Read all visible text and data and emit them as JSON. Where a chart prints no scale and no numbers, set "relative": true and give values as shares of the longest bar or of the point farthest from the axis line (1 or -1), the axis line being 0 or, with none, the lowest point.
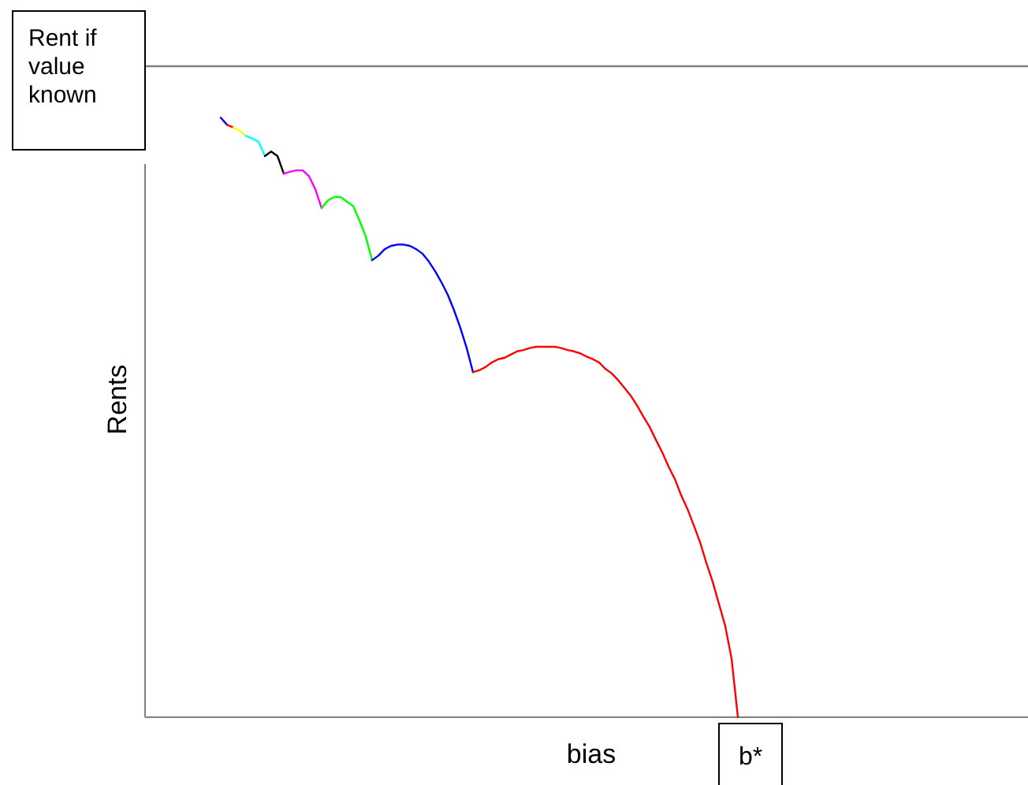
{
  "chart_data": {
    "type": "line",
    "relative": true,
    "xlabel": "bias",
    "ylabel": "Rents",
    "annotations": [
      "b*"
    ],
    "line_style": "solid",
    "categories": [
      null,
      null,
      null,
      null,
      null,
      null,
      null,
      null,
      null,
      null,
      null,
      null,
      null,
      null,
      null,
      null,
      null,
      null,
      null,
      null,
      null,
      null,
      null,
      null,
      null,
      null,
      null,
      null,
      null,
      null,
      null,
      null,
      null,
      null,
      null,
      null,
      null,
      null,
      null,
      null,
      null,
      null,
      null,
      null,
      null,
      null,
      null,
      null,
      null,
      null,
      null,
      null,
      null,
      null,
      null,
      null,
      null,
      null,
      null,
      null,
      null,
      null,
      null,
      null,
      null,
      null,
      null,
      null,
      null,
      null,
      null,
      null,
      null,
      null,
      null,
      null,
      null,
      null,
      null,
      null,
      null,
      null,
      null,
      null,
      null,
      null,
      null,
      null,
      null,
      null,
      null,
      null,
      null,
      null,
      null,
      null,
      null,
      null,
      null,
      null,
      null,
      null,
      null,
      null,
      null,
      null,
      null,
      null,
      null,
      null,
      null,
      null,
      null,
      null,
      null,
      null,
      null,
      null,
      null,
      null,
      null,
      null,
      null,
      null,
      null,
      null,
      null,
      null,
      null,
      null,
      null,
      null,
      null,
      null,
      null,
      null,
      null,
      null,
      null,
      null,
      null
    ],
    "series": [
      {
        "name": "Rent if value known",
        "color": "#808080",
        "values": [
          1,
          1,
          1,
          1,
          1,
          1,
          1,
          1,
          1,
          1,
          1,
          1,
          1,
          1,
          1,
          1,
          1,
          1,
          1,
          1,
          1,
          1,
          1,
          1,
          1,
          1,
          1,
          1,
          1,
          1,
          1,
          1,
          1,
          1,
          1,
          1,
          1,
          1,
          1,
          1,
          1,
          1,
          1,
          1,
          1,
          1,
          1,
          1,
          1,
          1,
          1,
          1,
          1,
          1,
          1,
          1,
          1,
          1,
          1,
          1,
          1,
          1,
          1,
          1,
          1,
          1,
          1,
          1,
          1,
          1,
          1,
          1,
          1,
          1,
          1,
          1,
          1,
          1,
          1,
          1,
          1,
          1,
          1,
          1,
          1,
          1,
          1,
          1,
          1,
          1,
          1,
          1,
          1,
          1,
          1,
          1,
          1,
          1,
          1,
          1,
          1,
          1,
          1,
          1,
          1,
          1,
          1,
          1,
          1,
          1,
          1,
          1,
          1,
          1,
          1,
          1,
          1,
          1,
          1,
          1,
          1,
          1,
          1,
          1,
          1,
          1,
          1,
          1,
          1,
          1,
          1,
          1,
          1,
          1,
          1,
          1,
          1,
          1,
          1,
          1,
          1
        ]
      },
      {
        "color": "#0000ff",
        "values": [
          null,
          null,
          null,
          null,
          null,
          null,
          null,
          null,
          null,
          null,
          null,
          null,
          0.921,
          0.91,
          null,
          null,
          null,
          null,
          null,
          null,
          null,
          null,
          null,
          null,
          null,
          null,
          null,
          null,
          null,
          null,
          null,
          null,
          null,
          null,
          null,
          null,
          null,
          null,
          null,
          null,
          null,
          null,
          null,
          null,
          null,
          null,
          null,
          null,
          null,
          null,
          null,
          null,
          null,
          null,
          null,
          null,
          null,
          null,
          null,
          null,
          null,
          null,
          null,
          null,
          null,
          null,
          null,
          null,
          null,
          null,
          null,
          null,
          null,
          null,
          null,
          null,
          null,
          null,
          null,
          null,
          null,
          null,
          null,
          null,
          null,
          null,
          null,
          null,
          null,
          null,
          null,
          null,
          null,
          null,
          null,
          null,
          null,
          null,
          null,
          null,
          null,
          null,
          null,
          null,
          null,
          null,
          null,
          null,
          null,
          null,
          null,
          null,
          null,
          null,
          null,
          null,
          null,
          null,
          null,
          null,
          null,
          null,
          null,
          null,
          null,
          null,
          null,
          null,
          null,
          null,
          null,
          null,
          null,
          null,
          null,
          null,
          null,
          null,
          null,
          null,
          null
        ]
      },
      {
        "color": "#fe0000",
        "values": [
          null,
          null,
          null,
          null,
          null,
          null,
          null,
          null,
          null,
          null,
          null,
          null,
          null,
          0.91,
          0.906,
          null,
          null,
          null,
          null,
          null,
          null,
          null,
          null,
          null,
          null,
          null,
          null,
          null,
          null,
          null,
          null,
          null,
          null,
          null,
          null,
          null,
          null,
          null,
          null,
          null,
          null,
          null,
          null,
          null,
          null,
          null,
          null,
          null,
          null,
          null,
          null,
          null,
          null,
          null,
          null,
          null,
          null,
          null,
          null,
          null,
          null,
          null,
          null,
          null,
          null,
          null,
          null,
          null,
          null,
          null,
          null,
          null,
          null,
          null,
          null,
          null,
          null,
          null,
          null,
          null,
          null,
          null,
          null,
          null,
          null,
          null,
          null,
          null,
          null,
          null,
          null,
          null,
          null,
          null,
          null,
          null,
          null,
          null,
          null,
          null,
          null,
          null,
          null,
          null,
          null,
          null,
          null,
          null,
          null,
          null,
          null,
          null,
          null,
          null,
          null,
          null,
          null,
          null,
          null,
          null,
          null,
          null,
          null,
          null,
          null,
          null,
          null,
          null,
          null,
          null,
          null,
          null,
          null,
          null,
          null,
          null,
          null,
          null,
          null,
          null,
          null
        ]
      },
      {
        "color": "#ffff00",
        "values": [
          null,
          null,
          null,
          null,
          null,
          null,
          null,
          null,
          null,
          null,
          null,
          null,
          null,
          null,
          0.906,
          0.901,
          0.893,
          null,
          null,
          null,
          null,
          null,
          null,
          null,
          null,
          null,
          null,
          null,
          null,
          null,
          null,
          null,
          null,
          null,
          null,
          null,
          null,
          null,
          null,
          null,
          null,
          null,
          null,
          null,
          null,
          null,
          null,
          null,
          null,
          null,
          null,
          null,
          null,
          null,
          null,
          null,
          null,
          null,
          null,
          null,
          null,
          null,
          null,
          null,
          null,
          null,
          null,
          null,
          null,
          null,
          null,
          null,
          null,
          null,
          null,
          null,
          null,
          null,
          null,
          null,
          null,
          null,
          null,
          null,
          null,
          null,
          null,
          null,
          null,
          null,
          null,
          null,
          null,
          null,
          null,
          null,
          null,
          null,
          null,
          null,
          null,
          null,
          null,
          null,
          null,
          null,
          null,
          null,
          null,
          null,
          null,
          null,
          null,
          null,
          null,
          null,
          null,
          null,
          null,
          null,
          null,
          null,
          null,
          null,
          null,
          null,
          null,
          null,
          null,
          null,
          null,
          null,
          null,
          null,
          null,
          null,
          null,
          null,
          null,
          null,
          null
        ]
      },
      {
        "color": "#00ffff",
        "values": [
          null,
          null,
          null,
          null,
          null,
          null,
          null,
          null,
          null,
          null,
          null,
          null,
          null,
          null,
          null,
          null,
          0.893,
          0.889,
          0.884,
          0.862,
          null,
          null,
          null,
          null,
          null,
          null,
          null,
          null,
          null,
          null,
          null,
          null,
          null,
          null,
          null,
          null,
          null,
          null,
          null,
          null,
          null,
          null,
          null,
          null,
          null,
          null,
          null,
          null,
          null,
          null,
          null,
          null,
          null,
          null,
          null,
          null,
          null,
          null,
          null,
          null,
          null,
          null,
          null,
          null,
          null,
          null,
          null,
          null,
          null,
          null,
          null,
          null,
          null,
          null,
          null,
          null,
          null,
          null,
          null,
          null,
          null,
          null,
          null,
          null,
          null,
          null,
          null,
          null,
          null,
          null,
          null,
          null,
          null,
          null,
          null,
          null,
          null,
          null,
          null,
          null,
          null,
          null,
          null,
          null,
          null,
          null,
          null,
          null,
          null,
          null,
          null,
          null,
          null,
          null,
          null,
          null,
          null,
          null,
          null,
          null,
          null,
          null,
          null,
          null,
          null,
          null,
          null,
          null,
          null,
          null,
          null,
          null,
          null,
          null,
          null,
          null,
          null,
          null,
          null,
          null,
          null
        ]
      },
      {
        "color": "#000000",
        "values": [
          null,
          null,
          null,
          null,
          null,
          null,
          null,
          null,
          null,
          null,
          null,
          null,
          null,
          null,
          null,
          null,
          null,
          null,
          null,
          0.862,
          0.869,
          0.862,
          0.835,
          null,
          null,
          null,
          null,
          null,
          null,
          null,
          null,
          null,
          null,
          null,
          null,
          null,
          null,
          null,
          null,
          null,
          null,
          null,
          null,
          null,
          null,
          null,
          null,
          null,
          null,
          null,
          null,
          null,
          null,
          null,
          null,
          null,
          null,
          null,
          null,
          null,
          null,
          null,
          null,
          null,
          null,
          null,
          null,
          null,
          null,
          null,
          null,
          null,
          null,
          null,
          null,
          null,
          null,
          null,
          null,
          null,
          null,
          null,
          null,
          null,
          null,
          null,
          null,
          null,
          null,
          null,
          null,
          null,
          null,
          null,
          null,
          null,
          null,
          null,
          null,
          null,
          null,
          null,
          null,
          null,
          null,
          null,
          null,
          null,
          null,
          null,
          null,
          null,
          null,
          null,
          null,
          null,
          null,
          null,
          null,
          null,
          null,
          null,
          null,
          null,
          null,
          null,
          null,
          null,
          null,
          null,
          null,
          null,
          null,
          null,
          null,
          null,
          null,
          null,
          null,
          null,
          null
        ]
      },
      {
        "color": "#ff00ff",
        "values": [
          null,
          null,
          null,
          null,
          null,
          null,
          null,
          null,
          null,
          null,
          null,
          null,
          null,
          null,
          null,
          null,
          null,
          null,
          null,
          null,
          null,
          null,
          0.835,
          0.838,
          0.84,
          0.84,
          0.831,
          0.811,
          0.782,
          null,
          null,
          null,
          null,
          null,
          null,
          null,
          null,
          null,
          null,
          null,
          null,
          null,
          null,
          null,
          null,
          null,
          null,
          null,
          null,
          null,
          null,
          null,
          null,
          null,
          null,
          null,
          null,
          null,
          null,
          null,
          null,
          null,
          null,
          null,
          null,
          null,
          null,
          null,
          null,
          null,
          null,
          null,
          null,
          null,
          null,
          null,
          null,
          null,
          null,
          null,
          null,
          null,
          null,
          null,
          null,
          null,
          null,
          null,
          null,
          null,
          null,
          null,
          null,
          null,
          null,
          null,
          null,
          null,
          null,
          null,
          null,
          null,
          null,
          null,
          null,
          null,
          null,
          null,
          null,
          null,
          null,
          null,
          null,
          null,
          null,
          null,
          null,
          null,
          null,
          null,
          null,
          null,
          null,
          null,
          null,
          null,
          null,
          null,
          null,
          null,
          null,
          null,
          null,
          null,
          null,
          null,
          null,
          null,
          null,
          null,
          null
        ]
      },
      {
        "color": "#00ff00",
        "values": [
          null,
          null,
          null,
          null,
          null,
          null,
          null,
          null,
          null,
          null,
          null,
          null,
          null,
          null,
          null,
          null,
          null,
          null,
          null,
          null,
          null,
          null,
          null,
          null,
          null,
          null,
          null,
          null,
          0.782,
          0.794,
          0.799,
          0.799,
          0.792,
          0.785,
          0.763,
          0.738,
          0.702,
          null,
          null,
          null,
          null,
          null,
          null,
          null,
          null,
          null,
          null,
          null,
          null,
          null,
          null,
          null,
          null,
          null,
          null,
          null,
          null,
          null,
          null,
          null,
          null,
          null,
          null,
          null,
          null,
          null,
          null,
          null,
          null,
          null,
          null,
          null,
          null,
          null,
          null,
          null,
          null,
          null,
          null,
          null,
          null,
          null,
          null,
          null,
          null,
          null,
          null,
          null,
          null,
          null,
          null,
          null,
          null,
          null,
          null,
          null,
          null,
          null,
          null,
          null,
          null,
          null,
          null,
          null,
          null,
          null,
          null,
          null,
          null,
          null,
          null,
          null,
          null,
          null,
          null,
          null,
          null,
          null,
          null,
          null,
          null,
          null,
          null,
          null,
          null,
          null,
          null,
          null,
          null,
          null,
          null,
          null,
          null,
          null,
          null,
          null,
          null,
          null,
          null,
          null,
          null
        ]
      },
      {
        "color": "#0000ff",
        "values": [
          null,
          null,
          null,
          null,
          null,
          null,
          null,
          null,
          null,
          null,
          null,
          null,
          null,
          null,
          null,
          null,
          null,
          null,
          null,
          null,
          null,
          null,
          null,
          null,
          null,
          null,
          null,
          null,
          null,
          null,
          null,
          null,
          null,
          null,
          null,
          null,
          0.702,
          0.709,
          0.719,
          0.724,
          0.726,
          0.726,
          0.724,
          0.719,
          0.712,
          0.7,
          0.685,
          0.668,
          0.649,
          0.625,
          0.598,
          0.567,
          0.53,
          null,
          null,
          null,
          null,
          null,
          null,
          null,
          null,
          null,
          null,
          null,
          null,
          null,
          null,
          null,
          null,
          null,
          null,
          null,
          null,
          null,
          null,
          null,
          null,
          null,
          null,
          null,
          null,
          null,
          null,
          null,
          null,
          null,
          null,
          null,
          null,
          null,
          null,
          null,
          null,
          null,
          null,
          null,
          null,
          null,
          null,
          null,
          null,
          null,
          null,
          null,
          null,
          null,
          null,
          null,
          null,
          null,
          null,
          null,
          null,
          null,
          null,
          null,
          null,
          null,
          null,
          null,
          null,
          null,
          null,
          null,
          null,
          null,
          null,
          null,
          null,
          null,
          null,
          null,
          null,
          null,
          null,
          null,
          null,
          null,
          null,
          null,
          null
        ]
      },
      {
        "color": "#ff0000",
        "values": [
          null,
          null,
          null,
          null,
          null,
          null,
          null,
          null,
          null,
          null,
          null,
          null,
          null,
          null,
          null,
          null,
          null,
          null,
          null,
          null,
          null,
          null,
          null,
          null,
          null,
          null,
          null,
          null,
          null,
          null,
          null,
          null,
          null,
          null,
          null,
          null,
          null,
          null,
          null,
          null,
          null,
          null,
          null,
          null,
          null,
          null,
          null,
          null,
          null,
          null,
          null,
          null,
          0.53,
          0.533,
          0.538,
          0.545,
          0.55,
          0.552,
          0.557,
          0.562,
          0.564,
          0.567,
          0.569,
          0.569,
          0.569,
          0.569,
          0.567,
          0.564,
          0.562,
          0.559,
          0.554,
          0.55,
          0.545,
          0.535,
          0.528,
          0.518,
          0.506,
          0.494,
          0.479,
          0.462,
          0.446,
          0.426,
          0.407,
          0.385,
          0.366,
          0.341,
          0.32,
          0.295,
          0.269,
          0.237,
          0.208,
          0.174,
          0.14,
          0.09,
          0,
          null,
          null,
          null,
          null,
          null,
          null,
          null,
          null,
          null,
          null,
          null,
          null,
          null,
          null,
          null,
          null,
          null,
          null,
          null,
          null,
          null,
          null,
          null,
          null,
          null,
          null,
          null,
          null,
          null,
          null,
          null,
          null,
          null,
          null,
          null,
          null,
          null,
          null,
          null,
          null,
          null,
          null,
          null,
          null,
          null,
          null
        ]
      }
    ]
  }
}
